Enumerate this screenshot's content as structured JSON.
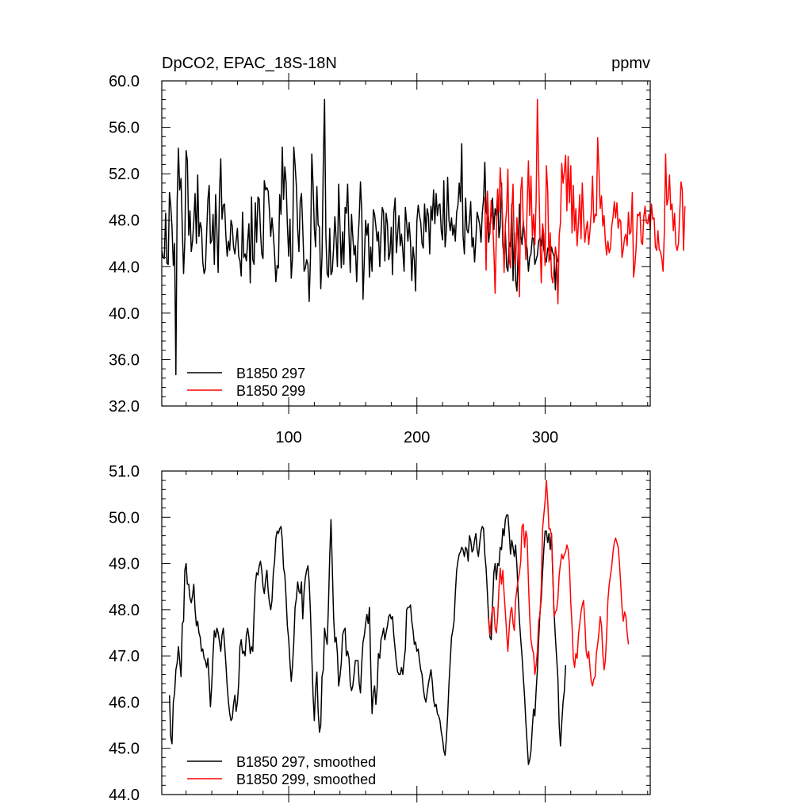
{
  "chart_data": [
    {
      "type": "line",
      "title": "DpCO2, EPAC_18S-18N",
      "units_label": "ppmv",
      "xlim": [
        1,
        382
      ],
      "ylim": [
        32,
        60
      ],
      "x_tick_values": [
        100,
        200,
        300
      ],
      "x_tick_labels": [
        "100",
        "200",
        "300"
      ],
      "y_tick_values": [
        32,
        36,
        40,
        44,
        48,
        52,
        56,
        60
      ],
      "y_tick_labels": [
        "32.0",
        "36.0",
        "40.0",
        "44.0",
        "48.0",
        "52.0",
        "56.0",
        "60.0"
      ],
      "legend_position": "bottom-left",
      "series": [
        {
          "name": "B1850 297",
          "color": "#000000",
          "x_start": 1,
          "values": [
            45.4,
            44.8,
            44.7,
            48.6,
            44.3,
            44.2,
            50.4,
            49.3,
            47.4,
            44.1,
            46.0,
            34.7,
            49.6,
            54.2,
            50.6,
            51.6,
            47.3,
            43.4,
            46.3,
            54.0,
            53.1,
            46.7,
            48.8,
            45.3,
            46.2,
            47.9,
            50.3,
            46.0,
            51.9,
            46.6,
            47.8,
            47.3,
            44.4,
            43.4,
            43.8,
            46.9,
            49.8,
            51.0,
            46.0,
            46.3,
            48.5,
            44.2,
            50.2,
            47.2,
            43.5,
            50.3,
            53.3,
            48.1,
            49.3,
            49.4,
            46.7,
            44.9,
            46.2,
            45.4,
            48.0,
            47.5,
            45.7,
            45.1,
            46.2,
            47.3,
            44.9,
            44.5,
            43.2,
            48.7,
            44.8,
            45.1,
            44.5,
            46.2,
            47.7,
            42.6,
            50.0,
            44.6,
            44.2,
            49.5,
            46.1,
            50.0,
            49.8,
            47.0,
            45.1,
            44.7,
            51.4,
            50.6,
            50.8,
            50.5,
            48.8,
            46.6,
            48.2,
            46.8,
            45.0,
            42.7,
            44.1,
            43.9,
            50.2,
            48.5,
            54.3,
            49.8,
            52.6,
            51.3,
            47.6,
            44.9,
            48.1,
            43.0,
            44.8,
            54.3,
            52.8,
            50.9,
            47.2,
            45.3,
            49.6,
            50.3,
            47.3,
            43.6,
            43.9,
            44.6,
            44.2,
            41.0,
            44.7,
            53.7,
            51.1,
            47.3,
            45.7,
            50.9,
            47.6,
            47.4,
            42.1,
            44.9,
            52.8,
            58.4,
            46.6,
            43.4,
            43.1,
            47.3,
            43.3,
            43.6,
            45.6,
            48.3,
            46.4,
            44.0,
            51.1,
            47.5,
            43.9,
            47.0,
            44.2,
            49.1,
            48.6,
            51.1,
            46.8,
            43.5,
            48.5,
            46.6,
            45.0,
            45.8,
            42.7,
            46.1,
            48.2,
            51.3,
            48.7,
            41.2,
            44.7,
            48.0,
            46.7,
            47.7,
            43.1,
            45.7,
            43.6,
            48.9,
            48.5,
            47.5,
            46.2,
            47.0,
            44.0,
            46.8,
            49.1,
            48.7,
            44.5,
            48.6,
            47.7,
            44.6,
            45.2,
            47.4,
            43.3,
            48.6,
            49.9,
            45.2,
            46.9,
            48.4,
            45.8,
            46.8,
            45.4,
            43.6,
            49.1,
            47.8,
            46.2,
            47.8,
            46.1,
            42.8,
            45.7,
            44.6,
            41.9,
            47.9,
            49.3,
            48.4,
            47.8,
            46.0,
            45.6,
            49.4,
            47.0,
            49.0,
            48.4,
            45.1,
            49.2,
            48.0,
            50.6,
            47.7,
            50.3,
            48.4,
            49.3,
            49.4,
            47.1,
            46.3,
            51.4,
            45.7,
            47.1,
            51.7,
            48.0,
            47.1,
            48.2,
            46.7,
            47.6,
            46.2,
            48.7,
            49.3,
            51.2,
            49.6,
            54.6,
            46.7,
            45.1,
            49.9,
            47.2,
            46.9,
            48.0,
            49.6,
            45.7,
            46.5,
            44.4,
            46.3,
            48.7,
            48.2,
            47.6,
            46.1,
            48.6,
            49.8,
            53.0,
            48.8,
            48.3,
            46.1,
            47.3,
            48.6,
            49.9,
            47.2,
            49.0,
            48.4,
            50.5,
            46.5,
            47.5,
            51.2,
            45.9,
            44.7,
            47.1,
            44.0,
            43.6,
            46.1,
            45.7,
            49.4,
            42.8,
            46.9,
            42.8,
            41.9,
            45.4,
            49.4,
            46.7,
            45.9,
            47.9,
            46.5,
            46.1,
            45.5,
            43.6,
            44.8,
            45.1,
            46.5,
            46.4,
            44.2,
            44.6,
            45.0,
            46.2,
            46.5,
            45.8,
            47.3,
            45.5,
            44.8,
            44.4,
            45.6,
            45.3,
            44.6,
            45.7,
            45.2,
            44.9,
            42.0,
            45.0,
            44.4
          ]
        },
        {
          "name": "B1850 299",
          "color": "#ff0000",
          "x_start": 253,
          "values": [
            50.0,
            43.7,
            50.5,
            48.0,
            46.8,
            49.7,
            48.2,
            45.4,
            41.7,
            47.1,
            50.7,
            48.7,
            52.5,
            50.4,
            47.6,
            43.5,
            47.6,
            48.9,
            52.4,
            44.6,
            43.9,
            48.7,
            51.1,
            45.4,
            44.1,
            48.2,
            45.7,
            41.4,
            50.5,
            51.7,
            47.7,
            47.0,
            44.6,
            49.3,
            53.1,
            48.4,
            51.8,
            46.6,
            48.5,
            45.9,
            49.7,
            58.4,
            52.3,
            46.4,
            42.6,
            47.7,
            46.8,
            44.1,
            52.7,
            50.6,
            44.4,
            46.9,
            43.2,
            42.6,
            43.9,
            45.7,
            44.9,
            40.8,
            46.7,
            47.8,
            52.9,
            51.2,
            52.2,
            53.6,
            48.8,
            53.5,
            49.5,
            52.7,
            46.9,
            51.0,
            47.1,
            49.0,
            45.8,
            47.8,
            50.2,
            46.4,
            51.2,
            48.4,
            46.1,
            47.2,
            47.9,
            45.9,
            47.1,
            48.7,
            51.8,
            47.8,
            48.5,
            48.4,
            55.1,
            52.3,
            49.0,
            50.1,
            47.5,
            48.4,
            46.2,
            45.0,
            46.2,
            45.2,
            45.6,
            47.5,
            48.3,
            49.6,
            48.2,
            49.5,
            47.3,
            48.1,
            47.9,
            44.8,
            45.5,
            46.5,
            46.8,
            45.8,
            48.7,
            46.8,
            47.0,
            50.4,
            43.1,
            44.1,
            45.6,
            48.5,
            48.4,
            48.7,
            46.1,
            45.9,
            48.3,
            49.2,
            47.8,
            47.7,
            48.5,
            47.2,
            49.4,
            48.1,
            48.2,
            45.7,
            45.4,
            47.1,
            45.5,
            45.3,
            44.7,
            43.6,
            47.0,
            53.7,
            49.3,
            49.8,
            51.9,
            48.9,
            49.4,
            47.1,
            48.6,
            45.9,
            45.4,
            46.0,
            48.6,
            51.3,
            50.6,
            45.4,
            49.2
          ]
        }
      ]
    },
    {
      "type": "line",
      "xlim": [
        1,
        382
      ],
      "ylim": [
        44,
        51
      ],
      "x_tick_values": [
        100,
        200,
        300
      ],
      "y_tick_values": [
        44,
        45,
        46,
        47,
        48,
        49,
        50,
        51
      ],
      "y_tick_labels": [
        "44.0",
        "45.0",
        "46.0",
        "47.0",
        "48.0",
        "49.0",
        "50.0",
        "51.0"
      ],
      "legend_position": "bottom-left",
      "series": [
        {
          "name": "B1850 297, smoothed",
          "color": "#000000",
          "x_start": 7,
          "values": [
            46.15,
            45.25,
            45.1,
            46.0,
            46.2,
            46.7,
            46.85,
            47.2,
            46.9,
            46.55,
            47.7,
            47.75,
            48.85,
            49.0,
            48.55,
            48.55,
            48.25,
            48.15,
            48.3,
            48.55,
            48.0,
            47.65,
            47.75,
            47.5,
            47.4,
            47.1,
            47.15,
            46.95,
            46.9,
            46.75,
            46.95,
            46.45,
            45.9,
            46.4,
            47.05,
            47.55,
            47.4,
            47.6,
            47.5,
            47.3,
            47.1,
            47.45,
            47.6,
            47.25,
            46.85,
            46.35,
            46.0,
            45.75,
            45.6,
            45.65,
            45.95,
            46.15,
            45.8,
            46.0,
            46.4,
            47.2,
            47.35,
            47.05,
            47.1,
            47.0,
            47.45,
            47.6,
            47.4,
            47.05,
            47.2,
            47.1,
            47.9,
            48.55,
            48.8,
            48.75,
            48.95,
            49.05,
            48.85,
            48.5,
            48.35,
            48.65,
            48.85,
            48.4,
            48.15,
            48.0,
            48.2,
            48.8,
            49.05,
            49.55,
            49.7,
            49.65,
            49.75,
            49.8,
            49.5,
            48.9,
            48.75,
            48.25,
            47.65,
            47.35,
            46.85,
            46.45,
            46.8,
            47.3,
            48.05,
            48.25,
            48.6,
            48.4,
            48.35,
            48.6,
            47.8,
            48.4,
            48.7,
            48.85,
            48.95,
            48.6,
            47.95,
            47.0,
            46.15,
            45.6,
            46.3,
            46.65,
            45.8,
            45.35,
            45.5,
            46.55,
            46.7,
            47.6,
            47.4,
            47.25,
            48.1,
            49.15,
            49.95,
            48.95,
            47.85,
            47.3,
            47.4,
            47.05,
            46.35,
            46.55,
            46.85,
            47.45,
            47.55,
            47.6,
            47.0,
            47.1,
            46.95,
            46.4,
            46.25,
            46.35,
            46.6,
            46.9,
            46.9,
            46.9,
            46.4,
            46.2,
            46.85,
            47.3,
            47.45,
            47.7,
            47.9,
            47.7,
            48.05,
            46.8,
            45.75,
            46.2,
            46.35,
            45.95,
            46.3,
            47.05,
            46.95,
            47.35,
            47.45,
            47.6,
            47.35,
            47.5,
            47.65,
            47.85,
            47.9,
            47.8,
            47.85,
            47.45,
            47.15,
            46.85,
            46.65,
            46.6,
            46.6,
            46.75,
            46.6,
            46.9,
            47.15,
            48.0,
            48.05,
            48.05,
            48.1,
            47.75,
            47.55,
            47.25,
            47.3,
            47.1,
            47.15,
            46.9,
            46.7,
            46.6,
            46.3,
            46.1,
            46.0,
            46.2,
            46.4,
            46.55,
            46.7,
            46.45,
            46.05,
            45.9,
            45.95,
            45.75,
            45.7,
            45.6,
            45.35,
            45.2,
            44.95,
            44.85,
            45.2,
            45.7,
            46.4,
            46.9,
            47.4,
            47.55,
            47.75,
            48.35,
            48.85,
            49.05,
            49.2,
            49.25,
            49.35,
            49.3,
            49.15,
            49.35,
            49.3,
            49.05,
            49.6,
            49.5,
            49.25,
            49.3,
            49.5,
            49.65,
            49.3,
            49.15,
            49.45,
            49.7,
            49.8,
            49.75,
            49.2,
            48.9,
            48.35,
            47.75,
            47.4,
            47.35,
            48.1,
            48.8,
            49.0,
            48.65,
            49.0,
            48.95,
            49.35,
            49.3,
            49.75,
            49.6,
            49.95,
            50.05,
            50.05,
            49.65,
            49.2,
            49.5,
            49.35,
            49.15,
            49.4,
            48.95,
            48.3,
            47.75,
            47.35,
            47.0,
            46.55,
            46.1,
            45.55,
            45.1,
            44.65,
            44.75,
            44.95,
            45.45,
            45.85,
            45.7,
            46.25,
            46.7,
            47.35,
            47.95,
            48.25,
            48.8,
            49.3,
            49.7,
            49.7,
            49.45,
            49.65,
            49.3,
            49.65,
            48.75,
            47.95,
            47.4,
            46.95,
            46.5,
            45.5,
            45.05,
            45.55,
            46.0,
            46.25,
            46.8
          ]
        },
        {
          "name": "B1850 299, smoothed",
          "color": "#ff0000",
          "x_start": 256,
          "values": [
            47.8,
            47.45,
            47.8,
            48.05,
            48.05,
            47.6,
            47.5,
            47.85,
            48.45,
            48.9,
            48.55,
            48.85,
            48.35,
            47.95,
            47.5,
            47.1,
            47.6,
            47.95,
            48.05,
            47.7,
            47.55,
            48.2,
            48.45,
            48.65,
            48.8,
            49.05,
            49.8,
            49.85,
            49.35,
            49.7,
            49.55,
            48.6,
            47.85,
            47.35,
            47.15,
            47.05,
            46.6,
            46.8,
            47.1,
            47.75,
            47.9,
            48.5,
            49.75,
            50.05,
            50.35,
            50.8,
            50.35,
            49.75,
            49.75,
            49.6,
            48.85,
            47.85,
            47.95,
            48.0,
            48.25,
            48.75,
            49.0,
            49.2,
            49.1,
            49.2,
            49.25,
            49.4,
            49.3,
            48.95,
            48.15,
            47.65,
            46.95,
            46.75,
            47.05,
            46.95,
            47.45,
            47.7,
            47.95,
            48.1,
            48.2,
            47.75,
            47.1,
            46.95,
            47.1,
            46.75,
            46.45,
            46.35,
            46.5,
            46.55,
            47.05,
            47.25,
            47.5,
            47.85,
            47.65,
            47.05,
            46.7,
            46.9,
            47.45,
            48.2,
            48.55,
            48.75,
            48.95,
            49.25,
            49.45,
            49.55,
            49.45,
            49.35,
            49.0,
            48.55,
            48.05,
            47.75,
            47.95,
            47.85,
            47.5,
            47.25
          ]
        }
      ]
    }
  ]
}
